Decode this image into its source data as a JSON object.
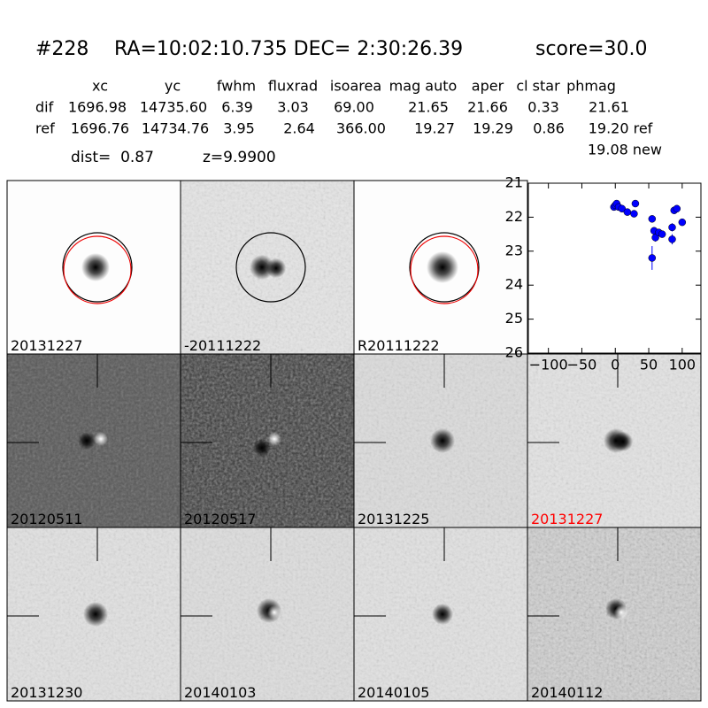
{
  "header": {
    "id": "#228",
    "coords": "RA=10:02:10.735 DEC= 2:30:26.39",
    "score": "score=30.0"
  },
  "table": {
    "columns": [
      "xc",
      "yc",
      "fwhm",
      "fluxrad",
      "isoarea",
      "mag auto",
      "aper",
      "cl star",
      "phmag"
    ],
    "rows": [
      {
        "label": "dif",
        "values": [
          "1696.98",
          "14735.60",
          "6.39",
          "3.03",
          "69.00",
          "21.65",
          "21.66",
          "0.33",
          "21.61"
        ]
      },
      {
        "label": "ref",
        "values": [
          "1696.76",
          "14734.76",
          "3.95",
          "2.64",
          "366.00",
          "19.27",
          "19.29",
          "0.86",
          "19.20 ref"
        ]
      }
    ],
    "extra": "19.08 new"
  },
  "info": {
    "dist": "dist=  0.87",
    "z": "z=9.9900"
  },
  "stamps": [
    "20131227",
    "-20111222",
    "R20111222",
    "20120511",
    "20120517",
    "20131225",
    "20131227",
    "20131230",
    "20140103",
    "20140105",
    "20140112"
  ],
  "chart_data": {
    "type": "scatter",
    "color": "#0000ff",
    "x": [
      -2,
      0,
      2,
      5,
      10,
      18,
      28,
      30,
      55,
      55,
      58,
      60,
      65,
      70,
      85,
      85,
      88,
      92,
      100
    ],
    "values": [
      21.7,
      21.65,
      21.6,
      21.7,
      21.75,
      21.85,
      21.9,
      21.6,
      22.05,
      23.2,
      22.4,
      22.6,
      22.45,
      22.5,
      22.3,
      22.65,
      21.8,
      21.75,
      22.15
    ],
    "errors": [
      0.05,
      0.05,
      0.05,
      0.05,
      0.05,
      0.05,
      0.05,
      0.05,
      0.1,
      0.35,
      0.1,
      0.12,
      0.1,
      0.1,
      0.12,
      0.15,
      0.08,
      0.08,
      0.08
    ],
    "xlim": [
      -130,
      128
    ],
    "ylim": [
      21,
      26
    ],
    "y_inverted": true,
    "xticks": [
      {
        "value": -100,
        "label": "−100"
      },
      {
        "value": -50,
        "label": "−50"
      },
      0,
      50,
      100
    ],
    "yticks": [
      21,
      22,
      23,
      24,
      25,
      26
    ]
  }
}
